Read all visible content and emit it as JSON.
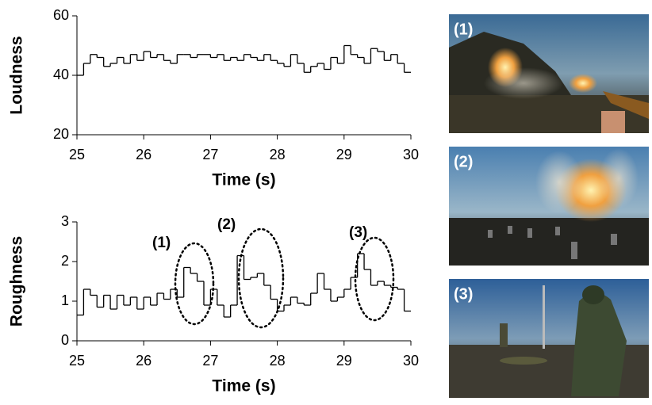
{
  "chart_data": [
    {
      "type": "step",
      "ylabel": "Loudness",
      "xlabel": "Time (s)",
      "color": "#000000",
      "x": [
        25.0,
        25.1,
        25.2,
        25.3,
        25.4,
        25.5,
        25.6,
        25.7,
        25.8,
        25.9,
        26.0,
        26.1,
        26.2,
        26.3,
        26.4,
        26.5,
        26.6,
        26.7,
        26.8,
        26.9,
        27.0,
        27.1,
        27.2,
        27.3,
        27.4,
        27.5,
        27.6,
        27.7,
        27.8,
        27.9,
        28.0,
        28.1,
        28.2,
        28.3,
        28.4,
        28.5,
        28.6,
        28.7,
        28.8,
        28.9,
        29.0,
        29.1,
        29.2,
        29.3,
        29.4,
        29.5,
        29.6,
        29.7,
        29.8,
        29.9
      ],
      "values": [
        40,
        44,
        47,
        46,
        43,
        44,
        46,
        44,
        47,
        45,
        48,
        46,
        47,
        45,
        44,
        47,
        47,
        46,
        47,
        47,
        46,
        47,
        45,
        46,
        45,
        47,
        46,
        45,
        47,
        45,
        44,
        43,
        47,
        44,
        41,
        43,
        44,
        42,
        46,
        44,
        50,
        47,
        46,
        44,
        49,
        48,
        45,
        47,
        44,
        41
      ],
      "xlim": [
        25,
        30
      ],
      "ylim": [
        20,
        60
      ],
      "xticks": [
        25,
        26,
        27,
        28,
        29,
        30
      ],
      "yticks": [
        20,
        40,
        60
      ]
    },
    {
      "type": "step",
      "ylabel": "Roughness",
      "xlabel": "Time (s)",
      "color": "#000000",
      "x": [
        25.0,
        25.1,
        25.2,
        25.3,
        25.4,
        25.5,
        25.6,
        25.7,
        25.8,
        25.9,
        26.0,
        26.1,
        26.2,
        26.3,
        26.4,
        26.5,
        26.6,
        26.7,
        26.8,
        26.9,
        27.0,
        27.1,
        27.2,
        27.3,
        27.4,
        27.5,
        27.6,
        27.7,
        27.8,
        27.9,
        28.0,
        28.1,
        28.2,
        28.3,
        28.4,
        28.5,
        28.6,
        28.7,
        28.8,
        28.9,
        29.0,
        29.1,
        29.2,
        29.3,
        29.4,
        29.5,
        29.6,
        29.7,
        29.8,
        29.9
      ],
      "values": [
        0.65,
        1.3,
        1.15,
        0.85,
        1.15,
        0.8,
        1.15,
        0.9,
        1.1,
        0.8,
        1.1,
        0.9,
        1.2,
        1.05,
        1.3,
        1.1,
        1.85,
        1.7,
        1.5,
        0.9,
        1.3,
        0.9,
        0.6,
        0.9,
        2.15,
        1.55,
        1.6,
        1.7,
        1.4,
        1.05,
        0.75,
        0.9,
        1.1,
        0.95,
        0.9,
        1.2,
        1.7,
        1.3,
        1.0,
        1.1,
        1.3,
        1.6,
        2.2,
        1.8,
        1.4,
        1.5,
        1.4,
        1.35,
        1.3,
        0.75
      ],
      "xlim": [
        25,
        30
      ],
      "ylim": [
        0,
        3
      ],
      "xticks": [
        25,
        26,
        27,
        28,
        29,
        30
      ],
      "yticks": [
        0,
        1,
        2,
        3
      ],
      "annotations": [
        "(1)",
        "(2)",
        "(3)"
      ]
    }
  ],
  "panels": [
    {
      "label": "(1)"
    },
    {
      "label": "(2)"
    },
    {
      "label": "(3)"
    }
  ]
}
